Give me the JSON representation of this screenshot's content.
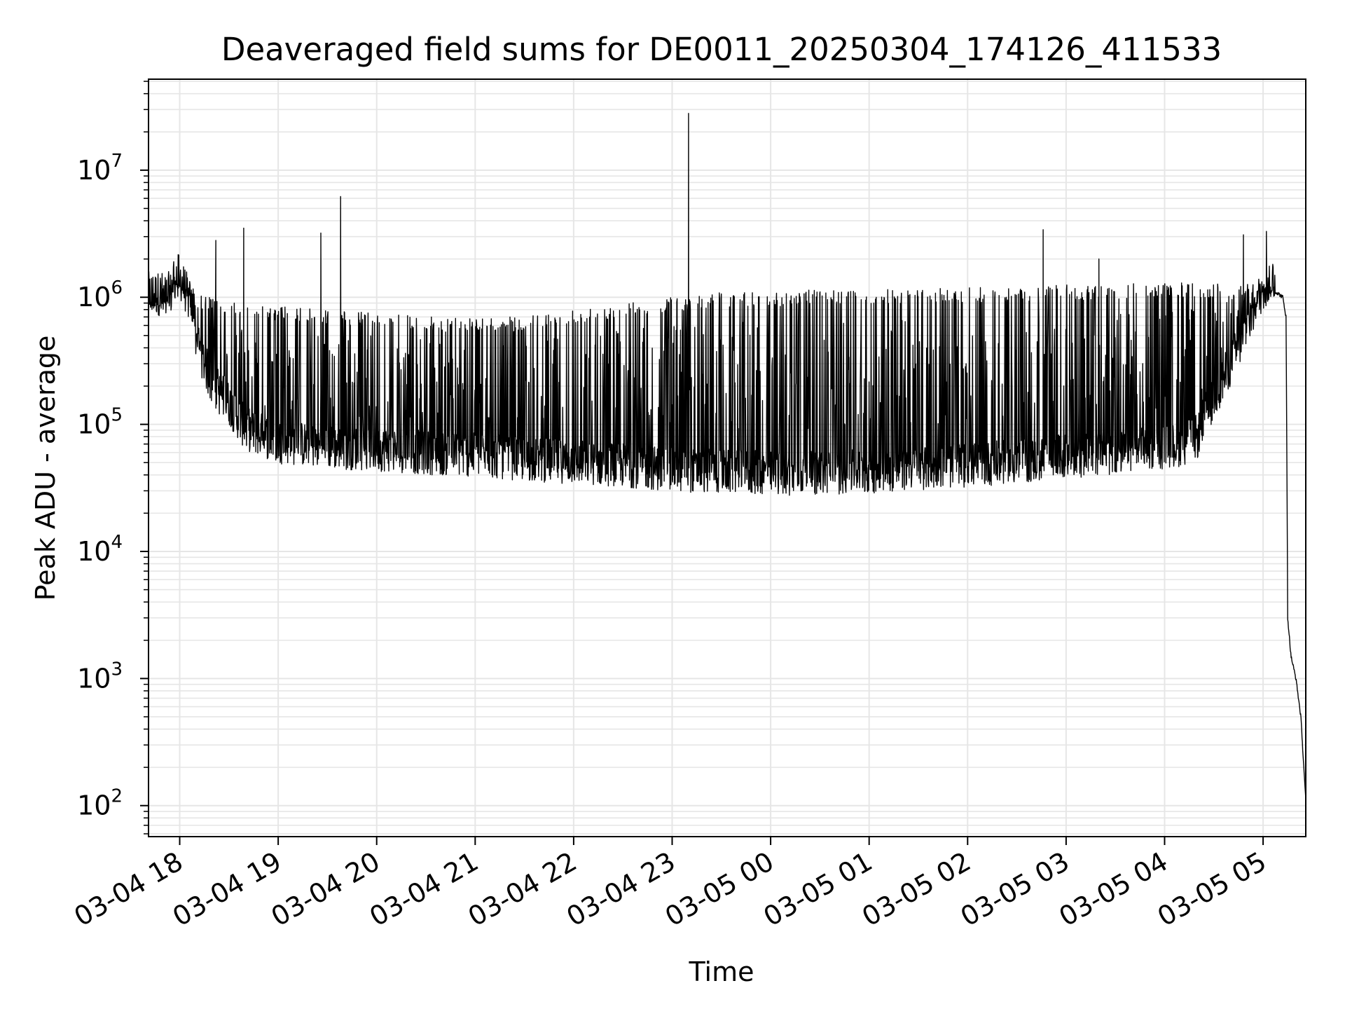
{
  "chart_data": {
    "type": "line",
    "title": "Deaveraged field sums for DE0011_20250304_174126_411533",
    "xlabel": "Time",
    "ylabel": "Peak ADU - average",
    "y_scale": "log",
    "ylim": [
      57,
      52000000
    ],
    "y_ticks": [
      {
        "value": 100,
        "base": "10",
        "exp": "2"
      },
      {
        "value": 1000,
        "base": "10",
        "exp": "3"
      },
      {
        "value": 10000,
        "base": "10",
        "exp": "4"
      },
      {
        "value": 100000,
        "base": "10",
        "exp": "5"
      },
      {
        "value": 1000000,
        "base": "10",
        "exp": "6"
      },
      {
        "value": 10000000,
        "base": "10",
        "exp": "7"
      }
    ],
    "xlim": [
      "2025-03-04T17:41",
      "2025-03-05T05:26"
    ],
    "x_ticks": [
      {
        "value": "2025-03-04T18:00",
        "label": "03-04 18"
      },
      {
        "value": "2025-03-04T19:00",
        "label": "03-04 19"
      },
      {
        "value": "2025-03-04T20:00",
        "label": "03-04 20"
      },
      {
        "value": "2025-03-04T21:00",
        "label": "03-04 21"
      },
      {
        "value": "2025-03-04T22:00",
        "label": "03-04 22"
      },
      {
        "value": "2025-03-04T23:00",
        "label": "03-04 23"
      },
      {
        "value": "2025-03-05T00:00",
        "label": "03-05 00"
      },
      {
        "value": "2025-03-05T01:00",
        "label": "03-05 01"
      },
      {
        "value": "2025-03-05T02:00",
        "label": "03-05 02"
      },
      {
        "value": "2025-03-05T03:00",
        "label": "03-05 03"
      },
      {
        "value": "2025-03-05T04:00",
        "label": "03-05 04"
      },
      {
        "value": "2025-03-05T05:00",
        "label": "03-05 05"
      }
    ],
    "grid": true,
    "line_color": "#000000",
    "grid_color": "#e6e6e6",
    "series": [
      {
        "x": [
          "2025-03-04T17:41",
          "2025-03-04T17:55",
          "2025-03-04T17:56",
          "2025-03-04T18:00",
          "2025-03-04T18:08",
          "2025-03-04T18:10",
          "2025-03-04T18:20",
          "2025-03-04T18:30",
          "2025-03-04T18:40",
          "2025-03-04T19:00",
          "2025-03-04T19:30",
          "2025-03-04T20:00",
          "2025-03-04T20:30",
          "2025-03-04T21:00",
          "2025-03-04T21:30",
          "2025-03-04T22:00",
          "2025-03-04T22:30",
          "2025-03-04T23:00",
          "2025-03-04T23:30",
          "2025-03-05T00:00",
          "2025-03-05T00:30",
          "2025-03-05T01:00",
          "2025-03-05T01:30",
          "2025-03-05T02:00",
          "2025-03-05T02:30",
          "2025-03-05T03:00",
          "2025-03-05T03:30",
          "2025-03-05T03:50",
          "2025-03-05T04:00",
          "2025-03-05T04:10",
          "2025-03-05T04:20",
          "2025-03-05T04:25",
          "2025-03-05T04:42",
          "2025-03-05T04:52",
          "2025-03-05T05:00",
          "2025-03-05T05:08",
          "2025-03-05T05:12",
          "2025-03-05T05:14",
          "2025-03-05T05:15",
          "2025-03-05T05:17",
          "2025-03-05T05:20",
          "2025-03-05T05:23",
          "2025-03-05T05:26"
        ],
        "y_floor": [
          800000,
          800000,
          1100000,
          1100000,
          600000,
          350000,
          150000,
          110000,
          70000,
          55000,
          50000,
          48000,
          45000,
          43000,
          40000,
          38000,
          36000,
          33000,
          32000,
          31000,
          31000,
          32000,
          34000,
          36000,
          38000,
          42000,
          45000,
          48000,
          50000,
          52000,
          60000,
          90000,
          250000,
          500000,
          900000,
          1100000,
          1000000,
          700000,
          3000,
          1500,
          1000,
          500,
          110
        ],
        "y_ceiling": [
          900000,
          1000000,
          1300000,
          1300000,
          1200000,
          1100000,
          1000000,
          950000,
          900000,
          850000,
          800000,
          750000,
          700000,
          700000,
          700000,
          800000,
          900000,
          1000000,
          1100000,
          1100000,
          1150000,
          1150000,
          1150000,
          1200000,
          1200000,
          1250000,
          1250000,
          1300000,
          1300000,
          1300000,
          1300000,
          1300000,
          1300000,
          1300000,
          1300000,
          1200000,
          1000000,
          700000,
          3000,
          1500,
          1000,
          500,
          110
        ],
        "spikes": [
          {
            "x": "2025-03-04T18:22",
            "y": 2800000
          },
          {
            "x": "2025-03-04T18:39",
            "y": 3500000
          },
          {
            "x": "2025-03-04T19:26",
            "y": 3200000
          },
          {
            "x": "2025-03-04T19:38",
            "y": 6200000
          },
          {
            "x": "2025-03-04T23:10",
            "y": 28000000
          },
          {
            "x": "2025-03-05T02:46",
            "y": 3400000
          },
          {
            "x": "2025-03-05T03:20",
            "y": 2000000
          },
          {
            "x": "2025-03-05T04:48",
            "y": 3100000
          },
          {
            "x": "2025-03-05T05:02",
            "y": 3300000
          }
        ]
      }
    ]
  }
}
